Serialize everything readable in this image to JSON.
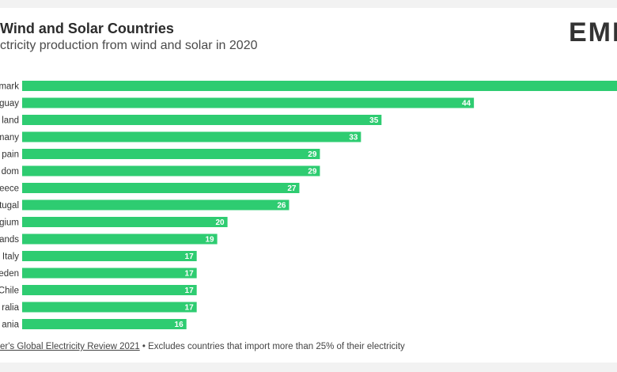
{
  "header": {
    "title": "Wind and Solar Countries",
    "subtitle": "ctricity production from wind and solar in 2020",
    "logo": "EMB"
  },
  "footer": {
    "source_link": "er's Global Electricity Review 2021",
    "source_note": " • Excludes countries that import more than 25% of their electricity"
  },
  "colors": {
    "bar": "#2ecc71",
    "bar_label": "#ffffff",
    "category_label": "#333333"
  },
  "chart_data": {
    "type": "bar",
    "orientation": "horizontal",
    "title": "Wind and Solar Countries",
    "subtitle": "ctricity production from wind and solar in 2020",
    "categories": [
      "mark",
      "guay",
      "land",
      "many",
      "pain",
      "dom",
      "eece",
      "tugal",
      "gium",
      "ands",
      "Italy",
      "eden",
      "Chile",
      "ralia",
      "ania"
    ],
    "values": [
      61,
      44,
      35,
      33,
      29,
      29,
      27,
      26,
      20,
      19,
      17,
      17,
      17,
      17,
      16
    ],
    "value_labels": [
      "",
      "44",
      "35",
      "33",
      "29",
      "29",
      "27",
      "26",
      "20",
      "19",
      "17",
      "17",
      "17",
      "17",
      "16"
    ],
    "xlim": [
      0,
      60
    ],
    "grid": false,
    "legend": "none"
  }
}
